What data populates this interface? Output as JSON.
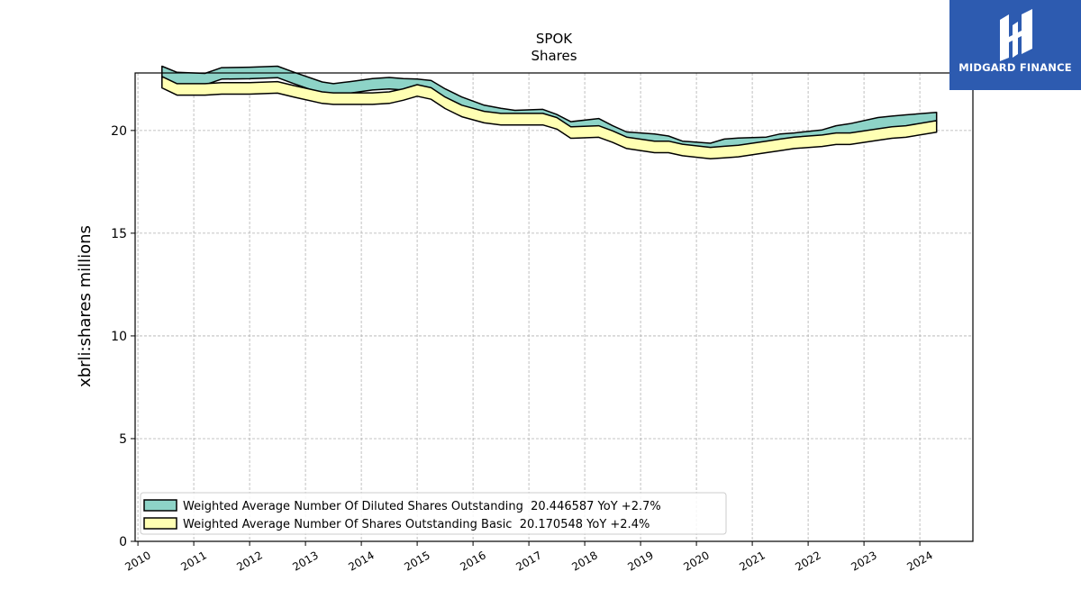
{
  "chart_data": {
    "type": "area",
    "title": "SPOK",
    "subtitle": "Shares",
    "xlabel": "",
    "ylabel": "xbrli:shares millions",
    "ylim": [
      0,
      22.8
    ],
    "xlim": [
      2009.95,
      2024.95
    ],
    "yticks": [
      0,
      5,
      10,
      15,
      20
    ],
    "xticks": [
      "2010",
      "2011",
      "2012",
      "2013",
      "2014",
      "2015",
      "2016",
      "2017",
      "2018",
      "2019",
      "2020",
      "2021",
      "2022",
      "2023",
      "2024"
    ],
    "grid": true,
    "legend_position": "lower-left",
    "series": [
      {
        "name": "Weighted Average Number Of Diluted Shares Outstanding  20.446587 YoY +2.7%",
        "color": "#8dd3c7",
        "x": [
          2010.43,
          2010.7,
          2011.2,
          2011.5,
          2012.0,
          2012.5,
          2012.8,
          2013.3,
          2013.5,
          2013.8,
          2014.2,
          2014.5,
          2014.75,
          2015.0,
          2015.25,
          2015.5,
          2015.8,
          2016.2,
          2016.5,
          2016.75,
          2017.25,
          2017.5,
          2017.75,
          2018.25,
          2018.5,
          2018.75,
          2019.25,
          2019.5,
          2019.75,
          2020.25,
          2020.5,
          2020.75,
          2021.25,
          2021.5,
          2021.75,
          2022.25,
          2022.5,
          2022.75,
          2023.25,
          2023.5,
          2023.75,
          2024.3
        ],
        "values": [
          22.85,
          22.55,
          22.5,
          22.78,
          22.8,
          22.85,
          22.55,
          22.08,
          22.0,
          22.1,
          22.25,
          22.3,
          22.25,
          22.22,
          22.15,
          21.75,
          21.35,
          20.95,
          20.8,
          20.7,
          20.75,
          20.5,
          20.15,
          20.3,
          19.95,
          19.65,
          19.55,
          19.45,
          19.2,
          19.1,
          19.3,
          19.35,
          19.4,
          19.55,
          19.6,
          19.75,
          19.95,
          20.05,
          20.35,
          20.42,
          20.48,
          20.6
        ]
      },
      {
        "name": "Weighted Average Number Of Shares Outstanding Basic  20.170548 YoY +2.4%",
        "color": "#ffffb3",
        "x": [
          2010.43,
          2010.7,
          2011.2,
          2011.5,
          2012.0,
          2012.5,
          2012.8,
          2013.3,
          2013.5,
          2013.8,
          2014.2,
          2014.5,
          2014.75,
          2015.0,
          2015.25,
          2015.5,
          2015.8,
          2016.2,
          2016.5,
          2016.75,
          2017.25,
          2017.5,
          2017.75,
          2018.25,
          2018.5,
          2018.75,
          2019.25,
          2019.5,
          2019.75,
          2020.25,
          2020.5,
          2020.75,
          2021.25,
          2021.5,
          2021.75,
          2022.25,
          2022.5,
          2022.75,
          2023.25,
          2023.5,
          2023.75,
          2024.3
        ],
        "values": [
          22.35,
          22.0,
          22.0,
          22.05,
          22.05,
          22.1,
          21.9,
          21.6,
          21.55,
          21.55,
          21.55,
          21.6,
          21.75,
          21.95,
          21.8,
          21.35,
          20.95,
          20.65,
          20.55,
          20.55,
          20.55,
          20.35,
          19.9,
          19.95,
          19.7,
          19.4,
          19.2,
          19.2,
          19.05,
          18.9,
          18.95,
          19.0,
          19.2,
          19.3,
          19.4,
          19.5,
          19.6,
          19.6,
          19.8,
          19.9,
          19.95,
          20.2
        ]
      }
    ]
  },
  "logo": {
    "text": "MIDGARD FINANCE",
    "background": "#2d5bb0"
  }
}
